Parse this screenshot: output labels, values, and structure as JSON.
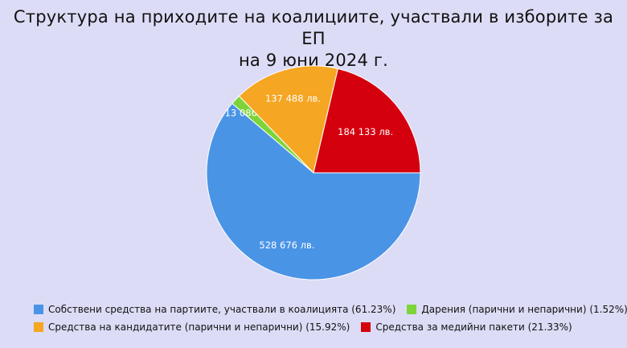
{
  "title_line1": "Структура на приходите на коалициите, участвали в изборите за ЕП",
  "title_line2": "на 9 юни 2024 г.",
  "chart_data": {
    "type": "pie",
    "title": "Структура на приходите на коалициите, участвали в изборите за ЕП на 9 юни 2024 г.",
    "legend_position": "bottom",
    "slices": [
      {
        "legend": "Собствени средства на партиите, участвали в коалицията (61.23%)",
        "label": "528 676 лв.",
        "value": 528676,
        "percent": 61.23,
        "color": "#4a94e6"
      },
      {
        "legend": "Дарения (парични и непарични) (1.52%)",
        "label": "13 086 лв.",
        "value": 13086,
        "percent": 1.52,
        "color": "#7dd438"
      },
      {
        "legend": "Средства на кандидатите (парични и непарични) (15.92%)",
        "label": "137 488 лв.",
        "value": 137488,
        "percent": 15.92,
        "color": "#f5a623"
      },
      {
        "legend": "Средства за медийни пакети (21.33%)",
        "label": "184 133 лв.",
        "value": 184133,
        "percent": 21.33,
        "color": "#d4000e"
      }
    ]
  }
}
